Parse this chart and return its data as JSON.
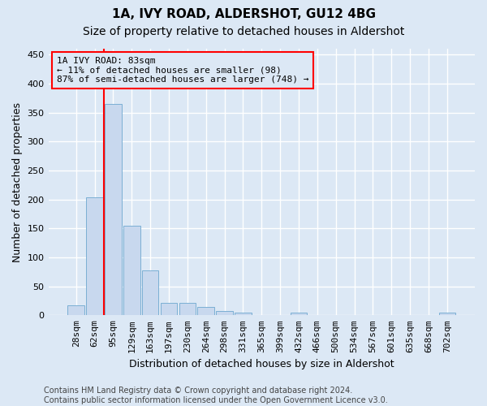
{
  "title1": "1A, IVY ROAD, ALDERSHOT, GU12 4BG",
  "title2": "Size of property relative to detached houses in Aldershot",
  "xlabel": "Distribution of detached houses by size in Aldershot",
  "ylabel": "Number of detached properties",
  "bar_color": "#c8d8ee",
  "bar_edge_color": "#7bafd4",
  "background_color": "#dce8f5",
  "categories": [
    "28sqm",
    "62sqm",
    "95sqm",
    "129sqm",
    "163sqm",
    "197sqm",
    "230sqm",
    "264sqm",
    "298sqm",
    "331sqm",
    "365sqm",
    "399sqm",
    "432sqm",
    "466sqm",
    "500sqm",
    "534sqm",
    "567sqm",
    "601sqm",
    "635sqm",
    "668sqm",
    "702sqm"
  ],
  "values": [
    17,
    203,
    365,
    155,
    78,
    22,
    22,
    14,
    7,
    5,
    0,
    0,
    4,
    0,
    0,
    0,
    0,
    0,
    0,
    0,
    4
  ],
  "ylim": [
    0,
    460
  ],
  "yticks": [
    0,
    50,
    100,
    150,
    200,
    250,
    300,
    350,
    400,
    450
  ],
  "marker_label_line1": "1A IVY ROAD: 83sqm",
  "marker_label_line2": "← 11% of detached houses are smaller (98)",
  "marker_label_line3": "87% of semi-detached houses are larger (748) →",
  "footer_line1": "Contains HM Land Registry data © Crown copyright and database right 2024.",
  "footer_line2": "Contains public sector information licensed under the Open Government Licence v3.0.",
  "grid_color": "#ffffff",
  "title1_fontsize": 11,
  "title2_fontsize": 10,
  "axis_label_fontsize": 9,
  "tick_fontsize": 8,
  "annotation_fontsize": 8,
  "footer_fontsize": 7
}
